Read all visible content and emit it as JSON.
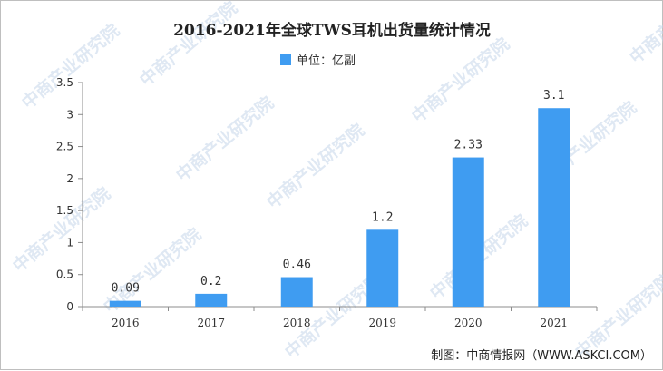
{
  "chart_data": {
    "type": "bar",
    "title": "2016-2021年全球TWS耳机出货量统计情况",
    "legend": {
      "label": "单位：亿副",
      "color": "#3f9cf1",
      "placement": "top-center"
    },
    "categories": [
      "2016",
      "2017",
      "2018",
      "2019",
      "2020",
      "2021"
    ],
    "values": [
      0.09,
      0.2,
      0.46,
      1.2,
      2.33,
      3.1
    ],
    "value_labels": [
      "0.09",
      "0.2",
      "0.46",
      "1.2",
      "2.33",
      "3.1"
    ],
    "ylim": [
      0,
      3.5
    ],
    "yticks": [
      0,
      0.5,
      1,
      1.5,
      2,
      2.5,
      3,
      3.5
    ],
    "ytick_labels": [
      "0",
      "0.5",
      "1",
      "1.5",
      "2",
      "2.5",
      "3",
      "3.5"
    ],
    "xlabel": "",
    "ylabel": "",
    "grid": false,
    "bar_color": "#3f9cf1"
  },
  "source": "制图：中商情报网（WWW.ASKCI.COM）",
  "watermark": {
    "text": "中商产业研究院",
    "color": "#c5d6ea"
  }
}
